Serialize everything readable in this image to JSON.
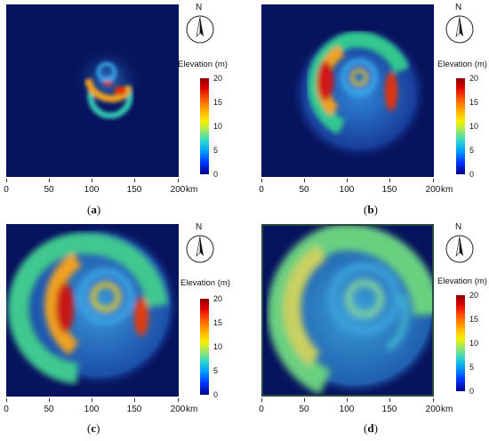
{
  "panels": [
    {
      "id": "a",
      "caption": "a",
      "time_index": 1
    },
    {
      "id": "b",
      "caption": "b",
      "time_index": 2
    },
    {
      "id": "c",
      "caption": "c",
      "time_index": 3
    },
    {
      "id": "d",
      "caption": "d",
      "time_index": 4
    }
  ],
  "x_axis": {
    "ticks": [
      "0",
      "50",
      "100",
      "150",
      "200"
    ],
    "unit": "km"
  },
  "compass_letter": "N",
  "colorbar": {
    "title": "Elevation (m)",
    "ticks": [
      "20",
      "15",
      "10",
      "5",
      "0"
    ],
    "min": 0,
    "max": 20
  },
  "colors": {
    "background": "#07135e",
    "peak": "#c81010"
  }
}
